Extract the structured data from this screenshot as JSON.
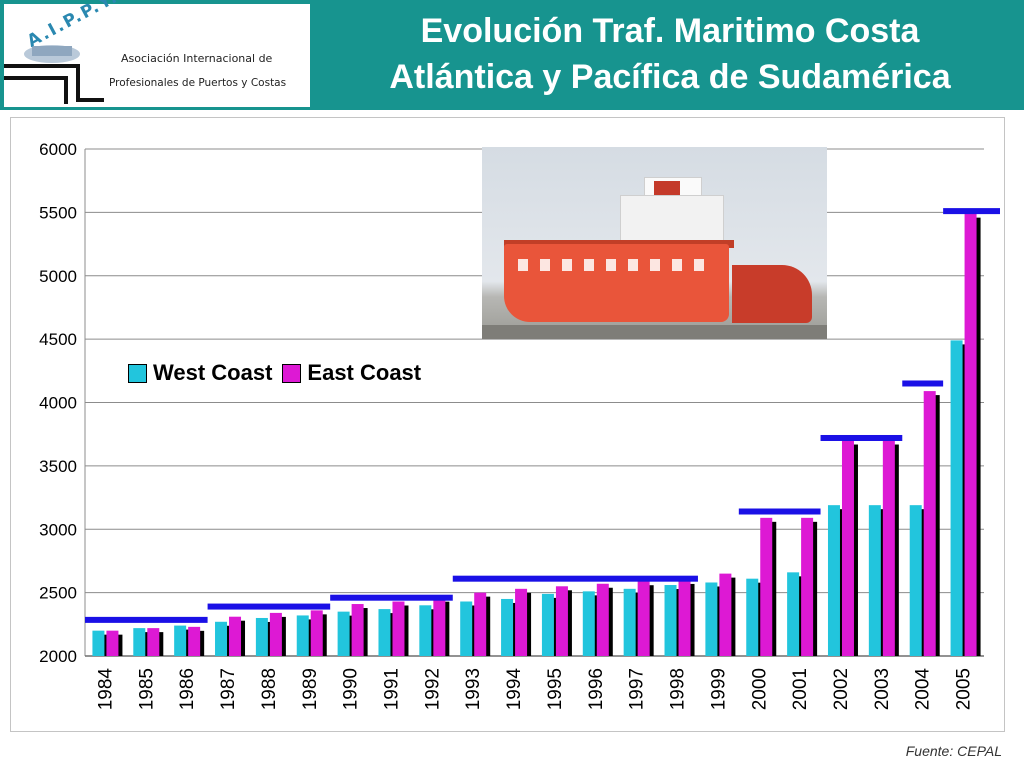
{
  "header": {
    "logo_letters": "A.I.P.P.Y.C.",
    "logo_line1": "Asociación Internacional de",
    "logo_line2": "Profesionales de Puertos y Costas",
    "title_line1": "Evolución Traf. Maritimo Costa",
    "title_line2": "Atlántica y Pacífica de Sudamérica"
  },
  "source_note": "Fuente: CEPAL",
  "colors": {
    "header_bg": "#17948f",
    "west": "#22c5dd",
    "east": "#dd19d4",
    "trend_line": "#1a10e6"
  },
  "chart_data": {
    "type": "bar",
    "title": "",
    "xlabel": "",
    "ylabel": "",
    "ylim": [
      2000,
      6000
    ],
    "yticks": [
      2000,
      2500,
      3000,
      3500,
      4000,
      4500,
      5000,
      5500,
      6000
    ],
    "grid": true,
    "legend_placement": "upper-left",
    "categories": [
      "1984",
      "1985",
      "1986",
      "1987",
      "1988",
      "1989",
      "1990",
      "1991",
      "1992",
      "1993",
      "1994",
      "1995",
      "1996",
      "1997",
      "1998",
      "1999",
      "2000",
      "2001",
      "2002",
      "2003",
      "2004",
      "2005"
    ],
    "series": [
      {
        "name": "West Coast",
        "color": "#22c5dd",
        "values": [
          2200,
          2220,
          2240,
          2270,
          2300,
          2320,
          2350,
          2370,
          2400,
          2430,
          2450,
          2490,
          2510,
          2530,
          2560,
          2580,
          2610,
          2660,
          3190,
          3190,
          3190,
          4490
        ]
      },
      {
        "name": "East Coast",
        "color": "#dd19d4",
        "values": [
          2200,
          2220,
          2230,
          2310,
          2340,
          2360,
          2410,
          2430,
          2460,
          2500,
          2530,
          2550,
          2570,
          2590,
          2600,
          2650,
          3090,
          3090,
          3700,
          3700,
          4090,
          5490
        ]
      }
    ],
    "trend_segments": [
      {
        "from": "1984",
        "to": "1986",
        "value": 2285
      },
      {
        "from": "1987",
        "to": "1989",
        "value": 2390
      },
      {
        "from": "1990",
        "to": "1992",
        "value": 2460
      },
      {
        "from": "1993",
        "to": "1998",
        "value": 2610
      },
      {
        "from": "2000",
        "to": "2001",
        "value": 3140
      },
      {
        "from": "2002",
        "to": "2003",
        "value": 3720
      },
      {
        "from": "2004",
        "to": "2004",
        "value": 4150
      },
      {
        "from": "2005",
        "to": "2005",
        "value": 5510
      }
    ]
  }
}
